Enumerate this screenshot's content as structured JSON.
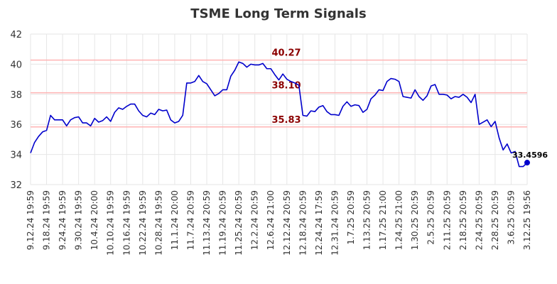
{
  "chart_data": {
    "type": "line",
    "title": "TSME Long Term Signals",
    "xlabel": "",
    "ylabel": "",
    "ylim": [
      32,
      42
    ],
    "yticks": [
      32,
      34,
      36,
      38,
      40,
      42
    ],
    "grid": true,
    "colors": {
      "line": "#0000cc",
      "signal_line": "#ffb3b3",
      "signal_label": "#8b0000",
      "grid": "#e6e6e6"
    },
    "x_tick_labels": [
      "9.12.24 19:59",
      "9.18.24 19:59",
      "9.24.24 19:59",
      "9.30.24 19:59",
      "10.4.24 20:00",
      "10.10.24 19:59",
      "10.16.24 19:59",
      "10.22.24 19:59",
      "10.28.24 19:59",
      "11.1.24 20:00",
      "11.7.24 20:59",
      "11.13.24 20:59",
      "11.19.24 20:59",
      "11.25.24 20:59",
      "12.2.24 20:59",
      "12.6.24 21:00",
      "12.12.24 20:59",
      "12.18.24 20:59",
      "12.24.24 17:59",
      "12.31.24 20:59",
      "1.7.25 20:59",
      "1.13.25 20:59",
      "1.17.25 21:00",
      "1.24.25 21:00",
      "1.30.25 20:59",
      "2.5.25 20:59",
      "2.11.25 20:59",
      "2.18.25 20:59",
      "2.24.25 20:59",
      "2.28.25 20:59",
      "3.6.25 20:59",
      "3.12.25 19:56"
    ],
    "signals": [
      {
        "label": "40.27",
        "value": 40.27
      },
      {
        "label": "38.10",
        "value": 38.1
      },
      {
        "label": "35.83",
        "value": 35.83
      }
    ],
    "last_point_label": "33.4596",
    "series": [
      {
        "values": [
          34.1,
          34.8,
          35.2,
          35.5,
          35.6,
          36.6,
          36.3,
          36.3,
          36.3,
          35.9,
          36.3,
          36.45,
          36.5,
          36.1,
          36.1,
          35.9,
          36.4,
          36.15,
          36.25,
          36.5,
          36.2,
          36.8,
          37.1,
          37.0,
          37.2,
          37.35,
          37.35,
          36.9,
          36.6,
          36.5,
          36.75,
          36.65,
          37.0,
          36.9,
          36.95,
          36.3,
          36.1,
          36.2,
          36.6,
          38.75,
          38.75,
          38.85,
          39.25,
          38.85,
          38.7,
          38.3,
          37.9,
          38.05,
          38.3,
          38.3,
          39.2,
          39.6,
          40.15,
          40.05,
          39.8,
          40.0,
          39.95,
          39.95,
          40.05,
          39.7,
          39.7,
          39.3,
          38.95,
          39.35,
          39.0,
          38.85,
          38.75,
          38.6,
          36.6,
          36.55,
          36.9,
          36.85,
          37.15,
          37.25,
          36.85,
          36.65,
          36.65,
          36.6,
          37.2,
          37.5,
          37.2,
          37.3,
          37.25,
          36.8,
          37.0,
          37.7,
          37.95,
          38.3,
          38.25,
          38.85,
          39.05,
          39.0,
          38.85,
          37.85,
          37.8,
          37.75,
          38.3,
          37.85,
          37.6,
          37.9,
          38.55,
          38.65,
          38.0,
          38.0,
          37.95,
          37.7,
          37.85,
          37.8,
          38.0,
          37.8,
          37.45,
          38.0,
          36.0,
          36.15,
          36.3,
          35.85,
          36.2,
          35.1,
          34.3,
          34.7,
          34.1,
          34.2,
          33.2,
          33.2,
          33.4596
        ]
      }
    ]
  }
}
